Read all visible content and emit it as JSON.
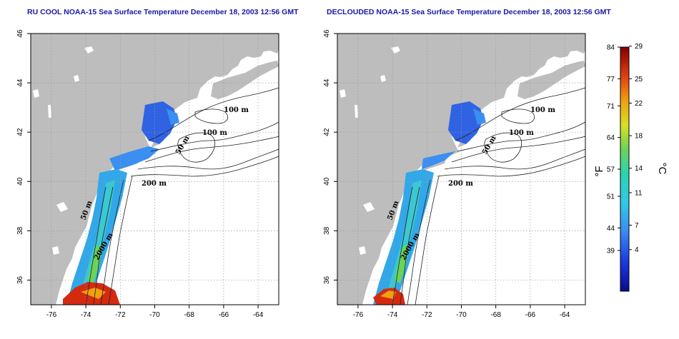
{
  "panels": [
    {
      "id": "left",
      "title": "RU COOL NOAA-15 Sea Surface Temperature December 18, 2003 12:56 GMT",
      "contour_labels": [
        "100 m",
        "100 m",
        "50 m",
        "200 m",
        "50 m",
        "2000 m"
      ]
    },
    {
      "id": "right",
      "title": "DECLOUDED NOAA-15 Sea Surface Temperature December 18, 2003 12:56 GMT",
      "contour_labels": [
        "100 m",
        "100 m",
        "50 m",
        "200 m",
        "50 m",
        "2000 m"
      ]
    }
  ],
  "axes": {
    "lon_ticks": [
      "-76",
      "-74",
      "-72",
      "-70",
      "-68",
      "-66",
      "-64"
    ],
    "lat_ticks": [
      "46",
      "44",
      "42",
      "40",
      "38",
      "36"
    ],
    "lon_range": [
      -77.2,
      -62.8
    ],
    "lat_range": [
      35,
      46
    ],
    "grid": "dotted"
  },
  "colorbar": {
    "fahrenheit_ticks": [
      "84",
      "77",
      "71",
      "64",
      "57",
      "51",
      "44",
      "39"
    ],
    "celsius_ticks": [
      "29",
      "25",
      "22",
      "18",
      "14",
      "11",
      "7",
      "4"
    ],
    "left_unit": "°F",
    "right_unit": "°C"
  },
  "colors": {
    "land": "#bdbdbd",
    "ocean": "#ffffff",
    "title": "#1818a8",
    "warm": "#d42a10",
    "cool": "#3a6fe0"
  }
}
